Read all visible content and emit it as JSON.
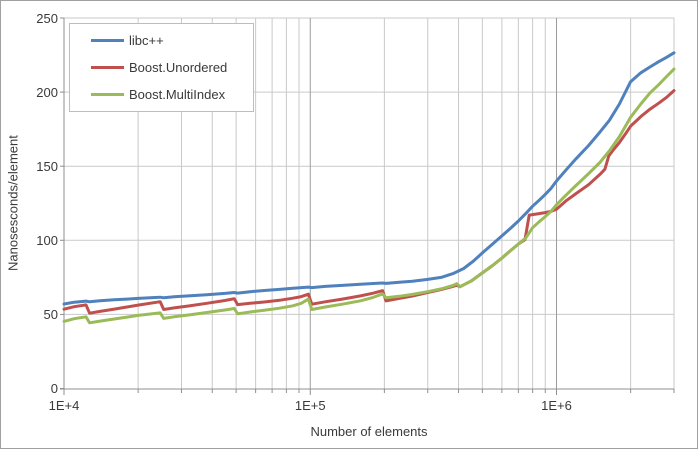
{
  "chart_data": {
    "type": "line",
    "title": "",
    "x_axis": {
      "label": "Number of elements",
      "scale": "log",
      "min": 10000,
      "max": 3000000,
      "tick_values": [
        10000,
        100000,
        1000000
      ],
      "tick_labels": [
        "1E+4",
        "1E+5",
        "1E+6"
      ]
    },
    "y_axis": {
      "label": "Nanosesconds/element",
      "min": 0,
      "max": 250,
      "tick_step": 50,
      "tick_values": [
        0,
        50,
        100,
        150,
        200,
        250
      ],
      "tick_labels": [
        "0",
        "50",
        "100",
        "150",
        "200",
        "250"
      ]
    },
    "grid": "on",
    "legend_position": "top-left",
    "colors": {
      "grid_minor": "#c9c9c9",
      "grid_major": "#9b9b9b",
      "axis": "#8f8f8f",
      "text": "#3a3a3a"
    },
    "series": [
      {
        "name": "libc++",
        "color": "#4F81BD",
        "points": [
          [
            10000,
            57
          ],
          [
            11000,
            58.2
          ],
          [
            12289,
            59
          ],
          [
            12700,
            58.5
          ],
          [
            14000,
            59.2
          ],
          [
            16000,
            59.9
          ],
          [
            18000,
            60.3
          ],
          [
            20000,
            60.8
          ],
          [
            24593,
            61.6
          ],
          [
            25400,
            61.2
          ],
          [
            28000,
            61.9
          ],
          [
            32000,
            62.5
          ],
          [
            38000,
            63.3
          ],
          [
            45000,
            64.2
          ],
          [
            49157,
            64.8
          ],
          [
            50700,
            64.4
          ],
          [
            57000,
            65.3
          ],
          [
            65000,
            66.1
          ],
          [
            75000,
            66.9
          ],
          [
            85000,
            67.6
          ],
          [
            98317,
            68.4
          ],
          [
            101500,
            68.1
          ],
          [
            115000,
            68.9
          ],
          [
            135000,
            69.6
          ],
          [
            160000,
            70.4
          ],
          [
            196613,
            71.2
          ],
          [
            203000,
            70.9
          ],
          [
            230000,
            71.7
          ],
          [
            260000,
            72.4
          ],
          [
            300000,
            73.6
          ],
          [
            340000,
            75
          ],
          [
            380000,
            77.5
          ],
          [
            420000,
            81
          ],
          [
            460000,
            86
          ],
          [
            500000,
            91.5
          ],
          [
            550000,
            97.5
          ],
          [
            600000,
            103
          ],
          [
            650000,
            108
          ],
          [
            700000,
            113
          ],
          [
            750000,
            118
          ],
          [
            800000,
            123
          ],
          [
            850000,
            127
          ],
          [
            900000,
            131
          ],
          [
            950000,
            135
          ],
          [
            1000000,
            140
          ],
          [
            1100000,
            148
          ],
          [
            1200000,
            155
          ],
          [
            1350000,
            164
          ],
          [
            1500000,
            173
          ],
          [
            1640000,
            181
          ],
          [
            1800000,
            192
          ],
          [
            2000000,
            207
          ],
          [
            2200000,
            213
          ],
          [
            2400000,
            217
          ],
          [
            2600000,
            220.5
          ],
          [
            2800000,
            223.5
          ],
          [
            3000000,
            226.5
          ]
        ]
      },
      {
        "name": "Boost.Unordered",
        "color": "#C0504D",
        "points": [
          [
            10000,
            53.5
          ],
          [
            11000,
            55.2
          ],
          [
            12289,
            56.4
          ],
          [
            12700,
            50.8
          ],
          [
            14000,
            52
          ],
          [
            16000,
            53.6
          ],
          [
            18000,
            55
          ],
          [
            20000,
            56.3
          ],
          [
            24593,
            58.6
          ],
          [
            25400,
            53.3
          ],
          [
            28000,
            54.4
          ],
          [
            32000,
            55.7
          ],
          [
            38000,
            57.5
          ],
          [
            45000,
            59.4
          ],
          [
            49157,
            60.6
          ],
          [
            50700,
            56.6
          ],
          [
            57000,
            57.5
          ],
          [
            65000,
            58.4
          ],
          [
            75000,
            59.5
          ],
          [
            85000,
            60.9
          ],
          [
            92000,
            62
          ],
          [
            98317,
            63.6
          ],
          [
            101500,
            56.9
          ],
          [
            115000,
            58.5
          ],
          [
            135000,
            60.3
          ],
          [
            160000,
            62.5
          ],
          [
            180000,
            64.3
          ],
          [
            196613,
            66
          ],
          [
            203000,
            59.1
          ],
          [
            230000,
            60.8
          ],
          [
            260000,
            62.4
          ],
          [
            300000,
            64.8
          ],
          [
            340000,
            66.8
          ],
          [
            380000,
            68.9
          ],
          [
            393241,
            69.7
          ],
          [
            406000,
            68.7
          ],
          [
            450000,
            72.5
          ],
          [
            500000,
            78
          ],
          [
            550000,
            83
          ],
          [
            600000,
            88
          ],
          [
            650000,
            93
          ],
          [
            700000,
            97.5
          ],
          [
            745000,
            100.5
          ],
          [
            775000,
            117
          ],
          [
            850000,
            118
          ],
          [
            900000,
            118.7
          ],
          [
            950000,
            119.5
          ],
          [
            1000000,
            121
          ],
          [
            1100000,
            127
          ],
          [
            1200000,
            131.5
          ],
          [
            1350000,
            137.5
          ],
          [
            1500000,
            144.5
          ],
          [
            1572869,
            148
          ],
          [
            1630000,
            157
          ],
          [
            1700000,
            161
          ],
          [
            1800000,
            166
          ],
          [
            1900000,
            171.5
          ],
          [
            2000000,
            177
          ],
          [
            2200000,
            183.5
          ],
          [
            2400000,
            188.5
          ],
          [
            2600000,
            192.5
          ],
          [
            2800000,
            196.5
          ],
          [
            3000000,
            201
          ]
        ]
      },
      {
        "name": "Boost.MultiIndex",
        "color": "#9BBB59",
        "points": [
          [
            10000,
            45.3
          ],
          [
            11000,
            47.1
          ],
          [
            12289,
            48.4
          ],
          [
            12700,
            44.3
          ],
          [
            14000,
            45.5
          ],
          [
            16000,
            46.9
          ],
          [
            18000,
            48.2
          ],
          [
            20000,
            49.3
          ],
          [
            24593,
            51
          ],
          [
            25400,
            47.3
          ],
          [
            28000,
            48.4
          ],
          [
            32000,
            49.6
          ],
          [
            38000,
            51.3
          ],
          [
            45000,
            53
          ],
          [
            49157,
            54
          ],
          [
            50700,
            50.4
          ],
          [
            57000,
            51.6
          ],
          [
            65000,
            52.8
          ],
          [
            75000,
            54.2
          ],
          [
            85000,
            55.8
          ],
          [
            92000,
            57.5
          ],
          [
            98317,
            60.3
          ],
          [
            101500,
            53.3
          ],
          [
            115000,
            55
          ],
          [
            135000,
            56.9
          ],
          [
            160000,
            59.2
          ],
          [
            180000,
            61.5
          ],
          [
            196613,
            63.8
          ],
          [
            203000,
            61.2
          ],
          [
            230000,
            62.2
          ],
          [
            260000,
            63.5
          ],
          [
            300000,
            65.3
          ],
          [
            340000,
            67.2
          ],
          [
            380000,
            69.5
          ],
          [
            393241,
            70.7
          ],
          [
            406000,
            68.7
          ],
          [
            450000,
            72.5
          ],
          [
            500000,
            78
          ],
          [
            550000,
            83
          ],
          [
            600000,
            88
          ],
          [
            650000,
            93
          ],
          [
            700000,
            97.5
          ],
          [
            750000,
            101.5
          ],
          [
            800000,
            108.5
          ],
          [
            850000,
            112.5
          ],
          [
            900000,
            116
          ],
          [
            950000,
            119.5
          ],
          [
            1000000,
            124
          ],
          [
            1100000,
            131
          ],
          [
            1200000,
            137
          ],
          [
            1350000,
            145
          ],
          [
            1500000,
            152.5
          ],
          [
            1650000,
            161
          ],
          [
            1800000,
            170
          ],
          [
            2000000,
            183
          ],
          [
            2200000,
            192
          ],
          [
            2400000,
            199.5
          ],
          [
            2600000,
            205
          ],
          [
            2800000,
            210.5
          ],
          [
            3000000,
            215.5
          ]
        ]
      }
    ]
  }
}
